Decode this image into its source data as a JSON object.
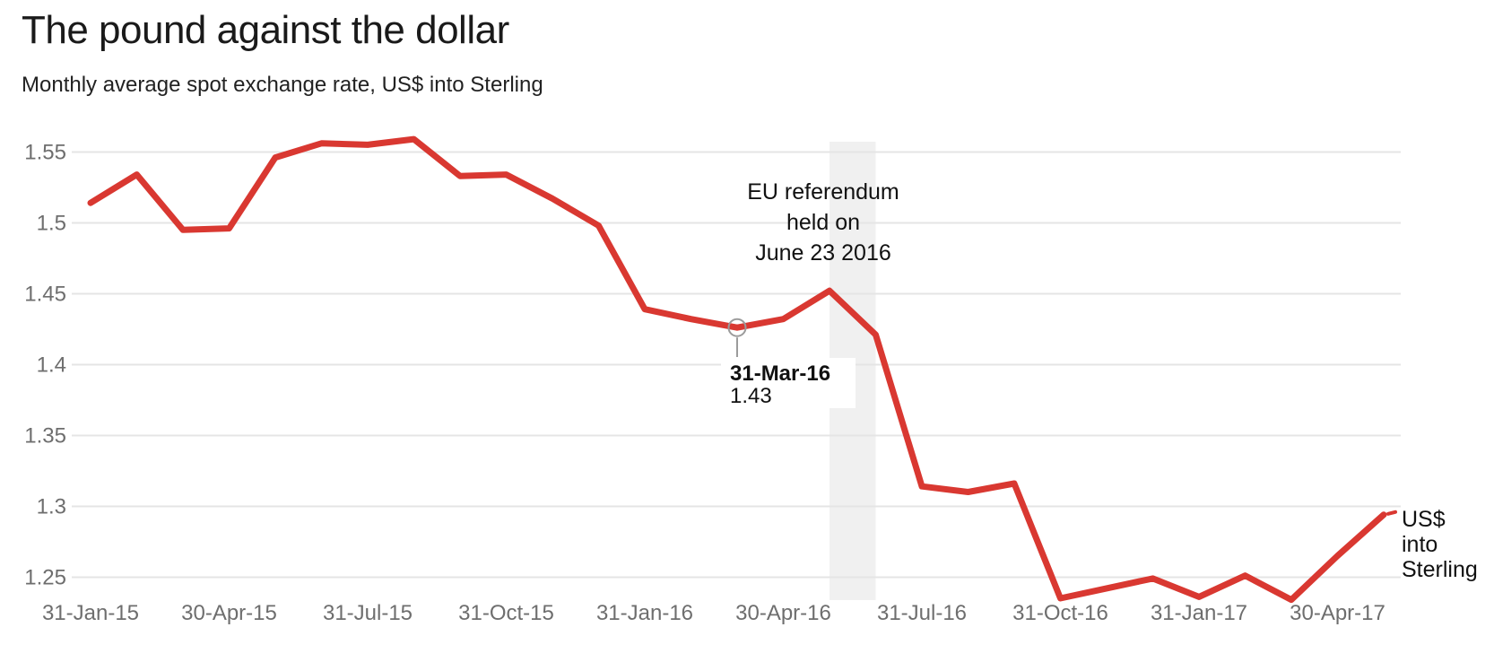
{
  "header": {
    "title": "The pound against the dollar",
    "subtitle": "Monthly average spot exchange rate, US$ into Sterling"
  },
  "annotation": {
    "lines": [
      "EU referendum",
      "held on",
      "June 23 2016"
    ]
  },
  "tooltip": {
    "date": "31-Mar-16",
    "value": "1.43"
  },
  "series_label": {
    "lines": [
      "US$",
      "into",
      "Sterling"
    ]
  },
  "colors": {
    "line": "#d93831",
    "band": "#f0f0f0",
    "grid": "#e5e5e5",
    "axis_text": "#6e6e6e",
    "marker": "#9b9b9b",
    "text": "#111111",
    "tooltip_bg": "#ffffff"
  },
  "chart_data": {
    "type": "line",
    "title": "The pound against the dollar",
    "subtitle": "Monthly average spot exchange rate, US$ into Sterling",
    "series_name": "US$ into Sterling",
    "x": [
      "31-Jan-15",
      "28-Feb-15",
      "31-Mar-15",
      "30-Apr-15",
      "31-May-15",
      "30-Jun-15",
      "31-Jul-15",
      "31-Aug-15",
      "30-Sep-15",
      "31-Oct-15",
      "30-Nov-15",
      "31-Dec-15",
      "31-Jan-16",
      "29-Feb-16",
      "31-Mar-16",
      "30-Apr-16",
      "31-May-16",
      "30-Jun-16",
      "31-Jul-16",
      "31-Aug-16",
      "30-Sep-16",
      "31-Oct-16",
      "30-Nov-16",
      "31-Dec-16",
      "31-Jan-17",
      "28-Feb-17",
      "31-Mar-17",
      "30-Apr-17",
      "31-May-17"
    ],
    "values": [
      1.514,
      1.534,
      1.495,
      1.496,
      1.546,
      1.556,
      1.555,
      1.559,
      1.533,
      1.534,
      1.517,
      1.498,
      1.439,
      1.432,
      1.426,
      1.432,
      1.452,
      1.421,
      1.314,
      1.31,
      1.316,
      1.235,
      1.242,
      1.249,
      1.236,
      1.251,
      1.234,
      1.265,
      1.294
    ],
    "x_tick_labels": [
      "31-Jan-15",
      "30-Apr-15",
      "31-Jul-15",
      "31-Oct-15",
      "31-Jan-16",
      "30-Apr-16",
      "31-Jul-16",
      "31-Oct-16",
      "31-Jan-17",
      "30-Apr-17"
    ],
    "x_tick_every": 3,
    "y_ticks": [
      1.25,
      1.3,
      1.35,
      1.4,
      1.45,
      1.5,
      1.55
    ],
    "y_tick_labels": [
      "1.25",
      "1.3",
      "1.35",
      "1.4",
      "1.45",
      "1.5",
      "1.55"
    ],
    "ylim": [
      1.25,
      1.55
    ],
    "grid": "horizontal",
    "legend_position": "right-of-line-end",
    "highlight_band": {
      "from": "31-May-16",
      "to": "30-Jun-16",
      "label": "EU referendum held on June 23 2016"
    },
    "highlighted_point": {
      "x": "31-Mar-16",
      "value": 1.43,
      "label_date": "31-Mar-16",
      "label_value": "1.43"
    }
  }
}
